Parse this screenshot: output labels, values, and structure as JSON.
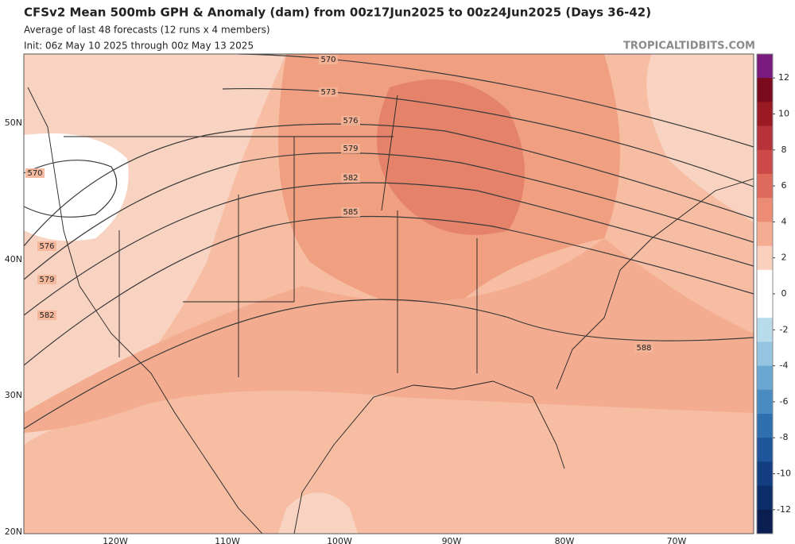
{
  "header": {
    "title": "CFSv2 Mean 500mb GPH & Anomaly (dam) from 00z17Jun2025 to 00z24Jun2025 (Days 36-42)",
    "subtitle": "Average of last 48 forecasts (12 runs x 4 members)",
    "init": "Init: 06z May 10 2025 through 00z May 13 2025",
    "credit": "TROPICALTIDBITS.COM"
  },
  "map": {
    "lat_labels": [
      "50N",
      "40N",
      "30N",
      "20N"
    ],
    "lon_labels": [
      "120W",
      "110W",
      "100W",
      "90W",
      "80W",
      "70W"
    ],
    "contour_labels": [
      "570",
      "573",
      "576",
      "579",
      "582",
      "585",
      "588",
      "570",
      "576",
      "579",
      "582"
    ]
  },
  "colorbar": {
    "ticks": [
      12,
      10,
      8,
      6,
      4,
      2,
      0,
      -2,
      -4,
      -6,
      -8,
      -10,
      -12
    ],
    "colors": [
      "#7b1a7e",
      "#7a0a1c",
      "#9a1a24",
      "#b8323a",
      "#cc4a48",
      "#de6a5c",
      "#ec8c74",
      "#f4ad92",
      "#f9cfbd",
      "#ffffff",
      "#ffffff",
      "#b9dcec",
      "#93c5e0",
      "#6aa8d2",
      "#4a8cc2",
      "#2f6fb0",
      "#1f559a",
      "#133f82",
      "#0c2c6a",
      "#0a1e52"
    ]
  }
}
